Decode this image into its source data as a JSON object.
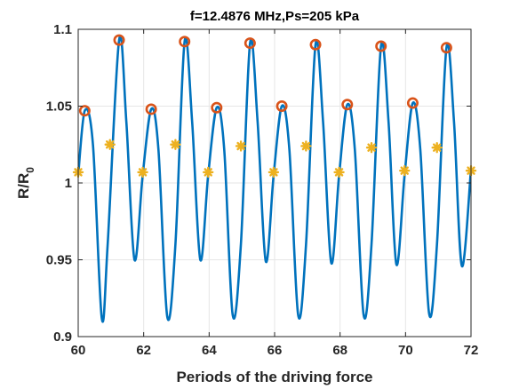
{
  "chart_data": {
    "type": "line",
    "title": "f=12.4876 MHz,Ps=205 kPa",
    "xlabel": "Periods of the driving force",
    "ylabel_main": "R/R",
    "ylabel_sub": "0",
    "xlim": [
      60,
      72
    ],
    "ylim": [
      0.9,
      1.1
    ],
    "xticks": [
      60,
      62,
      64,
      66,
      68,
      70,
      72
    ],
    "yticks": [
      0.9,
      0.95,
      1,
      1.05,
      1.1
    ],
    "xtick_labels": [
      "60",
      "62",
      "64",
      "66",
      "68",
      "70",
      "72"
    ],
    "ytick_labels": [
      "0.9",
      "0.95",
      "1",
      "1.05",
      "1.1"
    ],
    "grid": true,
    "colors": {
      "line": "#0072BD",
      "maxima": "#D95319",
      "markers": "#EDB120",
      "grid": "#E6E6E6",
      "axis": "#262626"
    },
    "series": [
      {
        "kind": "curve",
        "style": "line",
        "x": [
          60.0,
          60.2,
          60.45,
          60.72,
          60.9,
          61.25,
          61.47,
          61.72,
          61.97,
          62.23,
          62.45,
          62.72,
          62.97,
          63.25,
          63.48,
          63.73,
          63.97,
          64.23,
          64.46,
          64.72,
          64.97,
          65.25,
          65.48,
          65.73,
          65.97,
          66.22,
          66.45,
          66.72,
          66.96,
          67.25,
          67.48,
          67.73,
          67.97,
          68.22,
          68.45,
          68.72,
          68.96,
          69.25,
          69.48,
          69.72,
          69.97,
          70.22,
          70.45,
          70.72,
          70.96,
          71.25,
          71.48,
          71.72,
          72.0
        ],
        "y": [
          1.005,
          1.047,
          1.025,
          0.912,
          0.96,
          1.093,
          1.04,
          0.95,
          1.005,
          1.048,
          1.022,
          0.913,
          0.96,
          1.092,
          1.04,
          0.95,
          1.005,
          1.049,
          1.022,
          0.914,
          0.96,
          1.091,
          1.04,
          0.949,
          1.005,
          1.05,
          1.022,
          0.914,
          0.96,
          1.09,
          1.04,
          0.948,
          1.005,
          1.051,
          1.022,
          0.914,
          0.96,
          1.089,
          1.04,
          0.947,
          1.005,
          1.052,
          1.022,
          0.915,
          0.96,
          1.088,
          1.04,
          0.946,
          1.009
        ]
      },
      {
        "kind": "maxima",
        "style": "circle",
        "x": [
          60.2,
          61.25,
          62.23,
          63.25,
          64.23,
          65.25,
          66.22,
          67.25,
          68.22,
          69.25,
          70.22,
          71.25
        ],
        "y": [
          1.047,
          1.093,
          1.048,
          1.092,
          1.049,
          1.091,
          1.05,
          1.09,
          1.051,
          1.089,
          1.052,
          1.088
        ]
      },
      {
        "kind": "markers",
        "style": "asterisk",
        "x": [
          60.0,
          60.97,
          61.97,
          62.97,
          63.97,
          64.97,
          65.97,
          66.96,
          67.97,
          68.96,
          69.97,
          70.96,
          72.0
        ],
        "y": [
          1.007,
          1.025,
          1.007,
          1.025,
          1.007,
          1.024,
          1.007,
          1.024,
          1.007,
          1.023,
          1.008,
          1.023,
          1.008
        ]
      }
    ]
  }
}
